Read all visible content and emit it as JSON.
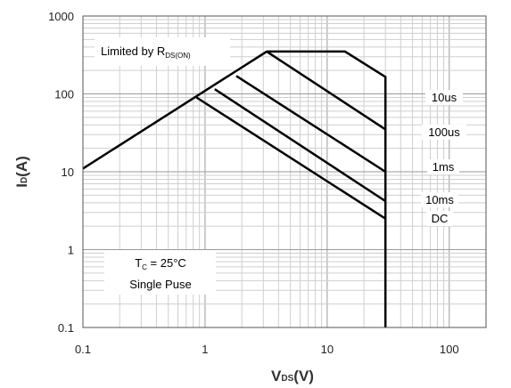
{
  "chart_data": {
    "type": "line",
    "scale": "log-log",
    "xlim": [
      0.1,
      200
    ],
    "ylim": [
      0.1,
      1000
    ],
    "x_ticks": [
      "0.1",
      "1",
      "10",
      "100"
    ],
    "y_ticks": [
      "1000",
      "100",
      "10",
      "1",
      "0.1"
    ],
    "xlabel": {
      "main": "V",
      "sub": "DS",
      "unit": "(V)"
    },
    "ylabel": {
      "main": "I",
      "sub": "D",
      "unit": "(A)"
    },
    "grid": true,
    "annotations": {
      "limit": {
        "main": "Limited by R",
        "sub": "DS(ON)"
      },
      "conditions": {
        "line1_main": "T",
        "line1_sub": "C",
        "line1_rest": " = 25°C",
        "line2": "Single Puse"
      }
    },
    "series": [
      {
        "name": "10us",
        "x": [
          0.1,
          3.2,
          14,
          30,
          30
        ],
        "y": [
          11,
          350,
          350,
          165,
          0.1
        ]
      },
      {
        "name": "100us",
        "x": [
          3.2,
          30
        ],
        "y": [
          350,
          35
        ]
      },
      {
        "name": "1ms",
        "x": [
          1.8,
          30
        ],
        "y": [
          170,
          10
        ]
      },
      {
        "name": "10ms",
        "x": [
          1.2,
          30
        ],
        "y": [
          115,
          4.2
        ]
      },
      {
        "name": "DC",
        "x": [
          0.85,
          30
        ],
        "y": [
          90,
          2.5
        ]
      }
    ]
  }
}
